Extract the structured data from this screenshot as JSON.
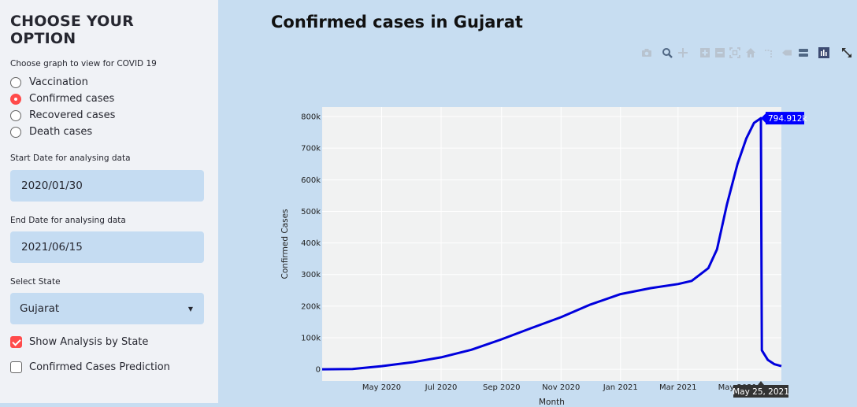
{
  "sidebar": {
    "title": "CHOOSE YOUR OPTION",
    "graph_prompt": "Choose graph to view for COVID 19",
    "radio_options": [
      {
        "label": "Vaccination",
        "selected": false
      },
      {
        "label": "Confirmed cases",
        "selected": true
      },
      {
        "label": "Recovered cases",
        "selected": false
      },
      {
        "label": "Death cases",
        "selected": false
      }
    ],
    "start_label": "Start Date for analysing data",
    "start_value": "2020/01/30",
    "end_label": "End Date for analysing data",
    "end_value": "2021/06/15",
    "state_label": "Select State",
    "state_value": "Gujarat",
    "show_analysis_label": "Show Analysis by State",
    "show_analysis_checked": true,
    "prediction_label": "Confirmed Cases Prediction",
    "prediction_checked": false
  },
  "main": {
    "title": "Confirmed cases in Gujarat"
  },
  "modebar_icons": [
    "camera-icon",
    "zoom-icon",
    "pan-icon",
    "zoom-in-icon",
    "zoom-out-icon",
    "autoscale-icon",
    "reset-axes-icon",
    "spike-lines-icon",
    "hover-closest-icon",
    "hover-compare-icon",
    "plotly-logo-icon",
    "fullscreen-icon"
  ],
  "chart_data": {
    "type": "line",
    "title": "Confirmed cases in Gujarat",
    "xlabel": "Month",
    "ylabel": "Confirmed Cases",
    "ylim": [
      -37000,
      830000
    ],
    "yticks": [
      0,
      100000,
      200000,
      300000,
      400000,
      500000,
      600000,
      700000,
      800000
    ],
    "ytick_labels": [
      "0",
      "100k",
      "200k",
      "300k",
      "400k",
      "500k",
      "600k",
      "700k",
      "800k"
    ],
    "xticks": [
      "2020-05-01",
      "2020-07-01",
      "2020-09-01",
      "2020-11-01",
      "2021-01-01",
      "2021-03-01",
      "2021-05-01"
    ],
    "xtick_labels": [
      "May 2020",
      "Jul 2020",
      "Sep 2020",
      "Nov 2020",
      "Jan 2021",
      "Mar 2021",
      "May 2021"
    ],
    "xlim": [
      "2020-03-01",
      "2021-06-15"
    ],
    "line_color": "#0000dd",
    "grid": true,
    "series": [
      {
        "points": [
          [
            "2020-03-01",
            0
          ],
          [
            "2020-04-01",
            1000
          ],
          [
            "2020-05-01",
            10000
          ],
          [
            "2020-06-01",
            22000
          ],
          [
            "2020-07-01",
            38000
          ],
          [
            "2020-08-01",
            62000
          ],
          [
            "2020-09-01",
            95000
          ],
          [
            "2020-10-01",
            130000
          ],
          [
            "2020-11-01",
            165000
          ],
          [
            "2020-12-01",
            205000
          ],
          [
            "2021-01-01",
            238000
          ],
          [
            "2021-02-01",
            257000
          ],
          [
            "2021-03-01",
            270000
          ],
          [
            "2021-03-15",
            280000
          ],
          [
            "2021-04-01",
            320000
          ],
          [
            "2021-04-10",
            380000
          ],
          [
            "2021-04-20",
            520000
          ],
          [
            "2021-05-01",
            650000
          ],
          [
            "2021-05-10",
            730000
          ],
          [
            "2021-05-18",
            780000
          ],
          [
            "2021-05-25",
            794912
          ],
          [
            "2021-05-26",
            60000
          ],
          [
            "2021-06-01",
            30000
          ],
          [
            "2021-06-08",
            16000
          ],
          [
            "2021-06-15",
            10000
          ]
        ]
      }
    ],
    "hover": {
      "x_label": "May 25, 2021",
      "y_label": "794.912k",
      "x": "2021-05-25",
      "y": 794912
    }
  }
}
